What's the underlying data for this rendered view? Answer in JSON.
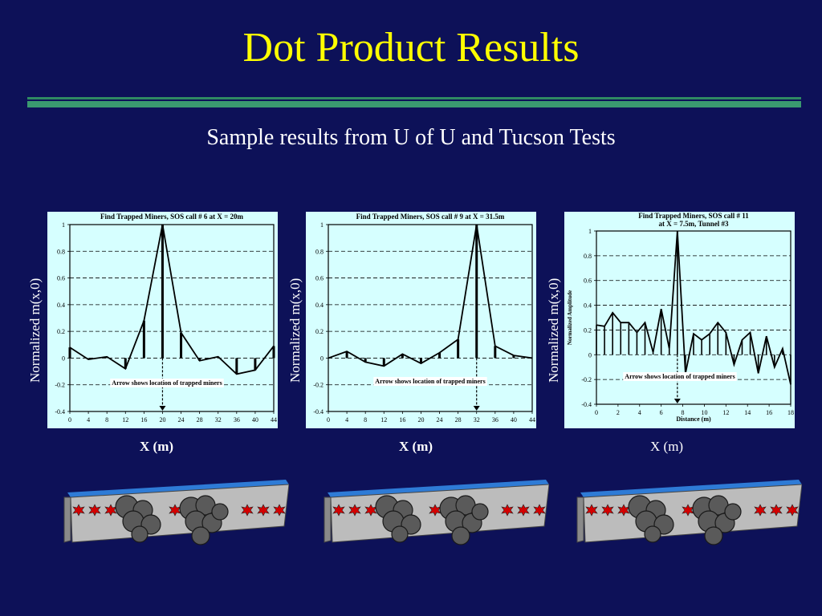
{
  "slide": {
    "title": "Dot Product Results",
    "subtitle": "Sample results from U of U and Tucson Tests"
  },
  "colors": {
    "background": "#0d1158",
    "title": "#ffff00",
    "panel": "#d6ffff",
    "rule": "#3a9a70"
  },
  "chart_data": [
    {
      "type": "line",
      "title": "Find Trapped Miners, SOS call # 6 at X = 20m",
      "ylabel": "Normalized m(x,0)",
      "xlabel": "X (m)",
      "xlim": [
        0,
        44
      ],
      "ylim": [
        -0.4,
        1
      ],
      "xticks": [
        "0",
        "4",
        "8",
        "12",
        "16",
        "20",
        "24",
        "28",
        "32",
        "36",
        "40",
        "44"
      ],
      "yticks": [
        "1",
        "0.8",
        "0.6",
        "0.4",
        "0.2",
        "0",
        "-0.2",
        "-0.4"
      ],
      "grid": "dashed horizontal",
      "annotation": "Arrow shows location of trapped miners",
      "arrow_x": 20,
      "x": [
        0,
        4,
        8,
        12,
        16,
        20,
        24,
        28,
        32,
        36,
        40,
        44
      ],
      "y": [
        0.08,
        -0.01,
        0.01,
        -0.08,
        0.28,
        1.0,
        0.19,
        -0.02,
        0.01,
        -0.12,
        -0.09,
        0.09
      ]
    },
    {
      "type": "line",
      "title": "Find Trapped Miners, SOS call # 9 at X = 31.5m",
      "ylabel": "Normalized m(x,0)",
      "xlabel": "X (m)",
      "xlim": [
        0,
        44
      ],
      "ylim": [
        -0.4,
        1
      ],
      "xticks": [
        "0",
        "4",
        "8",
        "12",
        "16",
        "20",
        "24",
        "28",
        "32",
        "36",
        "40",
        "44"
      ],
      "yticks": [
        "1",
        "0.8",
        "0.6",
        "0.4",
        "0.2",
        "0",
        "-0.2",
        "-0.4"
      ],
      "grid": "dashed horizontal",
      "annotation": "Arrow shows location of trapped miners",
      "arrow_x": 32,
      "x": [
        0,
        4,
        8,
        12,
        16,
        20,
        24,
        28,
        32,
        36,
        40,
        44
      ],
      "y": [
        0,
        0.05,
        -0.03,
        -0.06,
        0.03,
        -0.04,
        0.04,
        0.14,
        1.0,
        0.09,
        0.02,
        0
      ]
    },
    {
      "type": "line",
      "title": "Find Trapped Miners, SOS call # 11",
      "title2": "at X = 7.5m, Tunnel #3",
      "ylabel": "Normalized m(x,0)",
      "inner_ylabel": "Normalized Amplitude",
      "xlabel": "X (m)",
      "inner_xlabel": "Distance (m)",
      "xlim": [
        0,
        18
      ],
      "ylim": [
        -0.4,
        1
      ],
      "xticks": [
        "0",
        "2",
        "4",
        "6",
        "8",
        "10",
        "12",
        "14",
        "16",
        "18"
      ],
      "yticks": [
        "1",
        "0.8",
        "0.6",
        "0.4",
        "0.2",
        "0",
        "-0.2",
        "-0.4"
      ],
      "grid": "dashed horizontal",
      "annotation": "Arrow shows location of trapped miners",
      "arrow_x": 7.5,
      "x": [
        0,
        0.75,
        1.5,
        2.25,
        3.0,
        3.75,
        4.5,
        5.25,
        6.0,
        6.75,
        7.5,
        8.25,
        9.0,
        9.75,
        10.5,
        11.25,
        12.0,
        12.75,
        13.5,
        14.25,
        15.0,
        15.75,
        16.5,
        17.25,
        18.0
      ],
      "y": [
        0.24,
        0.23,
        0.34,
        0.26,
        0.26,
        0.18,
        0.26,
        0.02,
        0.37,
        0.05,
        1.0,
        -0.15,
        0.17,
        0.12,
        0.17,
        0.26,
        0.18,
        -0.08,
        0.12,
        0.18,
        -0.15,
        0.15,
        -0.1,
        0.05,
        -0.24
      ]
    }
  ]
}
